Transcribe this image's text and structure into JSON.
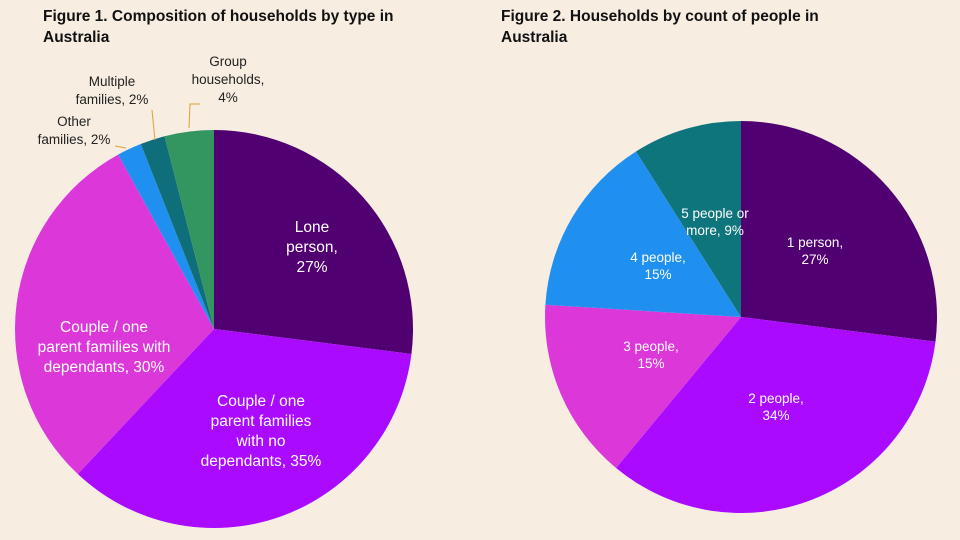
{
  "chart_data": [
    {
      "type": "pie",
      "title": "Figure 1. Composition of households by type in Australia",
      "slices": [
        {
          "label": "Lone person, 27%",
          "value": 27,
          "color": "#500070"
        },
        {
          "label": "Couple / one parent families with no dependants, 35%",
          "value": 35,
          "color": "#aa0aff"
        },
        {
          "label": "Couple / one parent families with dependants, 30%",
          "value": 30,
          "color": "#dc37d9"
        },
        {
          "label": "Other families, 2%",
          "value": 2,
          "color": "#2090f0"
        },
        {
          "label": "Multiple families, 2%",
          "value": 2,
          "color": "#0e6f7a"
        },
        {
          "label": "Group households, 4%",
          "value": 4,
          "color": "#33955f"
        }
      ],
      "labels": [
        [
          "Lone",
          "person,",
          "27%"
        ],
        [
          "Couple / one",
          "parent families",
          "with no",
          "dependants, 35%"
        ],
        [
          "Couple / one",
          "parent families with",
          "dependants, 30%"
        ],
        [
          "Other",
          "families, 2%"
        ],
        [
          "Multiple",
          "families, 2%"
        ],
        [
          "Group",
          "households,",
          "4%"
        ]
      ]
    },
    {
      "type": "pie",
      "title": "Figure 2. Households by count of people in Australia",
      "slices": [
        {
          "label": "1 person, 27%",
          "value": 27,
          "color": "#500070"
        },
        {
          "label": "2 people, 34%",
          "value": 34,
          "color": "#aa0aff"
        },
        {
          "label": "3 people, 15%",
          "value": 15,
          "color": "#dc37d9"
        },
        {
          "label": "4 people, 15%",
          "value": 15,
          "color": "#2090f0"
        },
        {
          "label": "5 people or more, 9%",
          "value": 9,
          "color": "#0e757d"
        }
      ],
      "labels": [
        [
          "1 person,",
          "27%"
        ],
        [
          "2 people,",
          "34%"
        ],
        [
          "3 people,",
          "15%"
        ],
        [
          "4 people,",
          "15%"
        ],
        [
          "5 people or",
          "more, 9%"
        ]
      ]
    }
  ]
}
